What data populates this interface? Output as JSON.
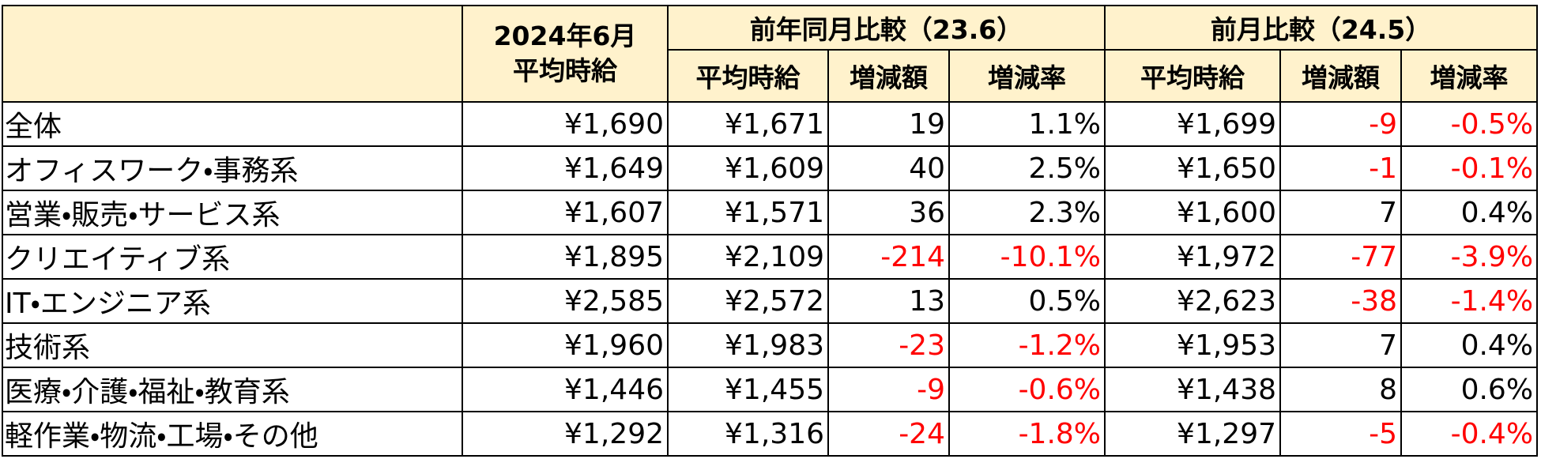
{
  "table": {
    "header": {
      "current": [
        "2024年6月",
        "平均時給"
      ],
      "groups": [
        {
          "title": "前年同月比較（23.6）",
          "columns": [
            "平均時給",
            "増減額",
            "増減率"
          ]
        },
        {
          "title": "前月比較（24.5）",
          "columns": [
            "平均時給",
            "増減額",
            "増減率"
          ]
        }
      ]
    },
    "rows": [
      [
        "全体",
        "¥1,690",
        "¥1,671",
        "19",
        "1.1%",
        "¥1,699",
        "-9",
        "-0.5%"
      ],
      [
        "オフィスワーク・事務系",
        "¥1,649",
        "¥1,609",
        "40",
        "2.5%",
        "¥1,650",
        "-1",
        "-0.1%"
      ],
      [
        "営業・販売・サービス系",
        "¥1,607",
        "¥1,571",
        "36",
        "2.3%",
        "¥1,600",
        "7",
        "0.4%"
      ],
      [
        "クリエイティブ系",
        "¥1,895",
        "¥2,109",
        "-214",
        "-10.1%",
        "¥1,972",
        "-77",
        "-3.9%"
      ],
      [
        "IT・エンジニア系",
        "¥2,585",
        "¥2,572",
        "13",
        "0.5%",
        "¥2,623",
        "-38",
        "-1.4%"
      ],
      [
        "技術系",
        "¥1,960",
        "¥1,983",
        "-23",
        "-1.2%",
        "¥1,953",
        "7",
        "0.4%"
      ],
      [
        "医療・介護・福祉・教育系",
        "¥1,446",
        "¥1,455",
        "-9",
        "-0.6%",
        "¥1,438",
        "8",
        "0.6%"
      ],
      [
        "軽作業・物流・工場・その他",
        "¥1,292",
        "¥1,316",
        "-24",
        "-1.8%",
        "¥1,297",
        "-5",
        "-0.4%"
      ]
    ]
  }
}
